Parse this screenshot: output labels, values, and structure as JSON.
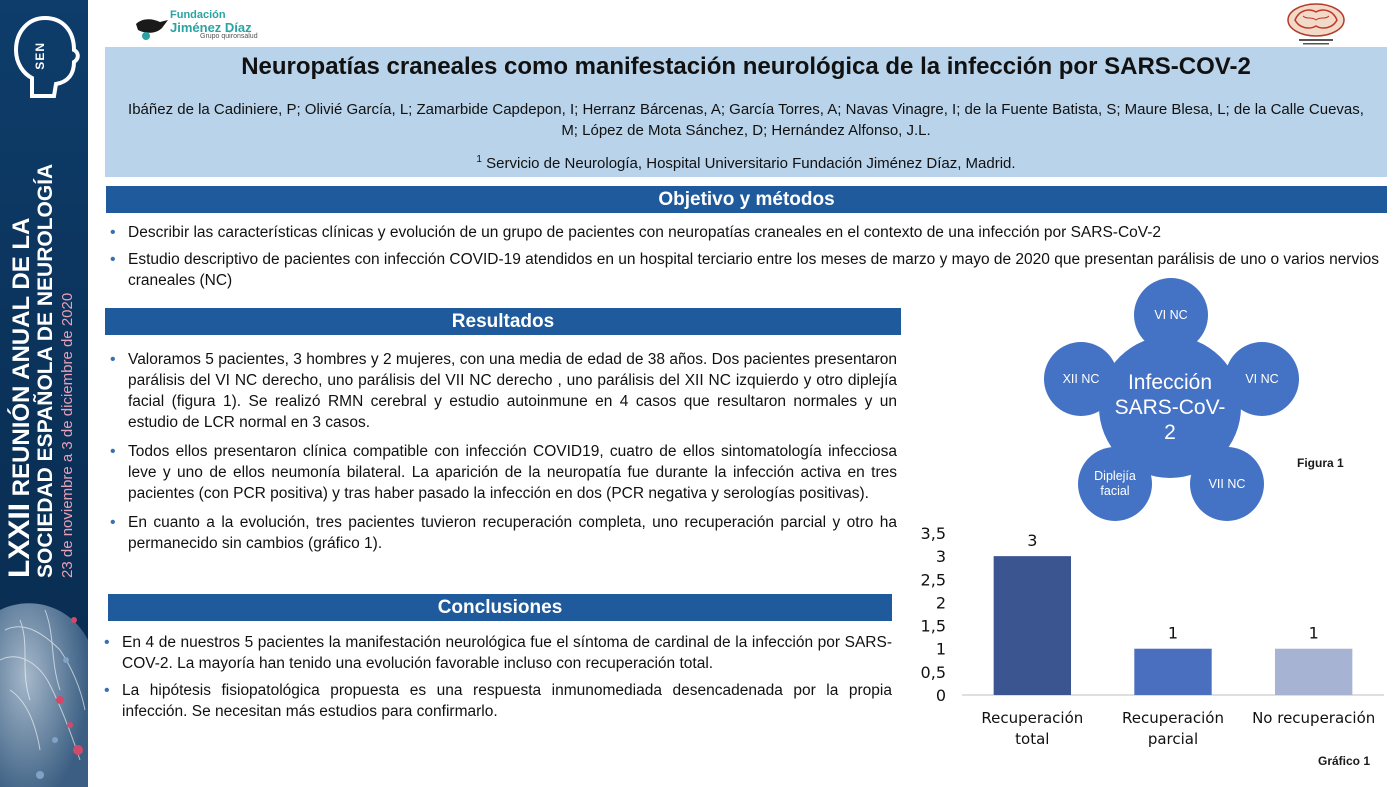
{
  "sidebar": {
    "logo_text": "SEN",
    "event_roman": "LXXII",
    "event_line1": "REUNIÓN ANUAL DE LA",
    "event_line2": "SOCIEDAD ESPAÑOLA DE NEUROLOGÍA",
    "event_dates": "23 de noviembre a 3 de diciembre de 2020"
  },
  "header": {
    "logo_line1": "Fundación",
    "logo_line2": "Jiménez Díaz",
    "logo_line3": "Grupo quironsalud"
  },
  "title": "Neuropatías craneales como manifestación neurológica de la infección por SARS-COV-2",
  "authors": "Ibáñez de la Cadiniere, P; Olivié García, L; Zamarbide Capdepon, I; Herranz Bárcenas, A; García Torres, A; Navas Vinagre, I; de la Fuente Batista, S; Maure Blesa, L; de la Calle Cuevas, M; López de Mota Sánchez, D; Hernández Alfonso, J.L.",
  "affiliation": {
    "sup": "1",
    "text": " Servicio de Neurología, Hospital Universitario Fundación  Jiménez Díaz, Madrid."
  },
  "objetivo": {
    "heading": "Objetivo y métodos",
    "items": [
      "Describir las características clínicas y evolución de un grupo de pacientes con neuropatías craneales en el contexto de una infección por SARS-CoV-2",
      "Estudio descriptivo de pacientes con infección COVID-19 atendidos en un hospital terciario entre los meses de marzo y mayo de 2020 que presentan parálisis de uno o varios nervios craneales (NC)"
    ]
  },
  "resultados": {
    "heading": "Resultados",
    "items": [
      "Valoramos 5 pacientes, 3  hombres y 2 mujeres, con una media de edad de 38 años. Dos pacientes presentaron parálisis del VI NC derecho, uno parálisis del VII NC derecho , uno parálisis del XII NC izquierdo y otro diplejía facial (figura 1). Se realizó RMN cerebral y estudio autoinmune en 4 casos que resultaron normales y un estudio de LCR normal en 3 casos.",
      "Todos ellos presentaron clínica compatible con infección COVID19, cuatro de ellos sintomatología infecciosa leve y uno de ellos neumonía bilateral. La aparición de la neuropatía fue durante la infección activa en tres pacientes (con PCR positiva) y tras haber pasado la infección en dos (PCR negativa y serologías positivas).",
      "En cuanto a la evolución, tres pacientes tuvieron recuperación completa, uno recuperación parcial y otro ha permanecido sin cambios (gráfico 1)."
    ]
  },
  "conclusiones": {
    "heading": "Conclusiones",
    "items": [
      "En 4 de nuestros 5 pacientes la manifestación neurológica fue el síntoma de cardinal de la infección por SARS-COV-2.  La mayoría han tenido una evolución favorable incluso con recuperación total.",
      "La hipótesis fisiopatológica propuesta es una respuesta inmunomediada desencadenada por la propia infección. Se necesitan más estudios para confirmarlo."
    ]
  },
  "figure": {
    "center": "Infección SARS-CoV-2",
    "nodes": [
      "VI NC",
      "VI NC",
      "VII NC",
      "Diplejía facial",
      "XII NC"
    ],
    "caption": "Figura 1",
    "color": "#4472c4"
  },
  "chart_data": {
    "type": "bar",
    "categories": [
      "Recuperación total",
      "Recuperación parcial",
      "No recuperación"
    ],
    "values": [
      3,
      1,
      1
    ],
    "ylim": [
      0,
      3.5
    ],
    "yticks": [
      "0",
      "0,5",
      "1",
      "1,5",
      "2",
      "2,5",
      "3",
      "3,5"
    ],
    "data_labels": [
      "3",
      "1",
      "1"
    ],
    "colors": [
      "#3b5591",
      "#4a6fbf",
      "#a7b3d2"
    ],
    "grid": false,
    "legend": "none",
    "caption": "Gráfico 1"
  }
}
